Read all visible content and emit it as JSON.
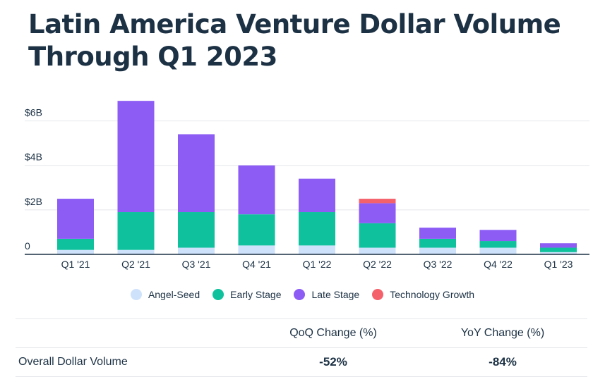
{
  "title_line1": "Latin America Venture Dollar Volume",
  "title_line2": "Through Q1 2023",
  "colors": {
    "angel_seed": "#cfe2fb",
    "early_stage": "#0fc29d",
    "late_stage": "#8c5cf5",
    "technology_growth": "#f5616b"
  },
  "legend": [
    {
      "label": "Angel-Seed",
      "color": "#cfe2fb"
    },
    {
      "label": "Early Stage",
      "color": "#0fc29d"
    },
    {
      "label": "Late Stage",
      "color": "#8c5cf5"
    },
    {
      "label": "Technology Growth",
      "color": "#f5616b"
    }
  ],
  "chart_data": {
    "type": "bar",
    "stacked": true,
    "categories": [
      "Q1 '21",
      "Q2 '21",
      "Q3 '21",
      "Q4 '21",
      "Q1 '22",
      "Q2 '22",
      "Q3 '22",
      "Q4 '22",
      "Q1 '23"
    ],
    "series": [
      {
        "name": "Angel-Seed",
        "values": [
          0.2,
          0.2,
          0.3,
          0.4,
          0.4,
          0.3,
          0.3,
          0.3,
          0.1
        ]
      },
      {
        "name": "Early Stage",
        "values": [
          0.5,
          1.7,
          1.6,
          1.4,
          1.5,
          1.1,
          0.4,
          0.3,
          0.2
        ]
      },
      {
        "name": "Late Stage",
        "values": [
          1.8,
          5.0,
          3.5,
          2.2,
          1.5,
          0.9,
          0.5,
          0.5,
          0.2
        ]
      },
      {
        "name": "Technology Growth",
        "values": [
          0,
          0,
          0,
          0,
          0,
          0.2,
          0,
          0,
          0
        ]
      }
    ],
    "yticks": [
      0,
      2,
      4,
      6
    ],
    "ytick_labels": [
      "0",
      "$2B",
      "$4B",
      "$6B"
    ],
    "ylim": [
      0,
      7
    ],
    "grid": true,
    "legend_position": "bottom"
  },
  "table": {
    "headers": [
      "",
      "QoQ Change (%)",
      "YoY Change (%)"
    ],
    "rows": [
      {
        "label": "Overall Dollar Volume",
        "qoq": "-52%",
        "yoy": "-84%"
      }
    ]
  }
}
